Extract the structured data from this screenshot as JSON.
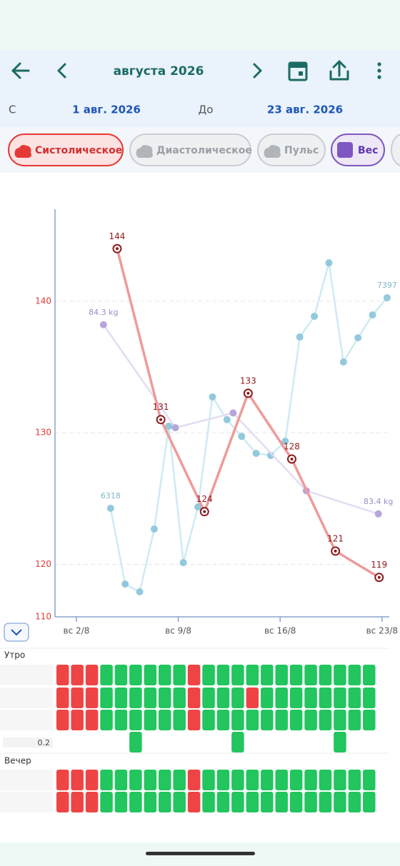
{
  "header": {
    "title": "августа 2026"
  },
  "range": {
    "from_label": "С",
    "from": "1 авг. 2026",
    "to_label": "До",
    "to": "23 авг. 2026"
  },
  "chips": [
    {
      "label": "Систолическое",
      "color": "#e53935",
      "selected": true
    },
    {
      "label": "Диастолическое",
      "color": "#b0b5ba",
      "selected": false
    },
    {
      "label": "Пульс",
      "color": "#b0b5ba",
      "selected": false
    },
    {
      "label": "Вес",
      "color": "#7e57c2",
      "selected": true
    }
  ],
  "chart_data": {
    "type": "line",
    "xlim": [
      0.53,
      23.5
    ],
    "xticks": [
      {
        "value": 2,
        "label": "вс 2/8"
      },
      {
        "value": 9,
        "label": "вс 9/8"
      },
      {
        "value": 16,
        "label": "вс 16/8"
      },
      {
        "value": 23,
        "label": "вс 23/8"
      }
    ],
    "ylim": [
      116,
      147
    ],
    "yticks": [
      120,
      130,
      140
    ],
    "y_min_label": "110",
    "grid": true,
    "y2lim": [
      82.91,
      84.85
    ],
    "y3lim": [
      5762,
      7851
    ],
    "series": [
      {
        "color": "#ef9a9a",
        "marker_color": "#8e1b1b",
        "axis": "y",
        "x": [
          4.8,
          7.8,
          10.8,
          13.8,
          16.8,
          19.8,
          22.8
        ],
        "values": [
          144,
          131,
          124,
          133,
          128,
          121,
          119
        ]
      },
      {
        "color": "#e3dcf3",
        "marker_color": "#b7a6dc",
        "axis": "y2",
        "x": [
          3.86,
          8.8,
          12.77,
          17.8,
          22.75
        ],
        "values": [
          84.3,
          83.81,
          83.88,
          83.51,
          83.4
        ],
        "value_labels": [
          "84.3 kg",
          null,
          null,
          null,
          "83.4 kg"
        ]
      },
      {
        "color": "#cdebf3",
        "marker_color": "#93c9dc",
        "axis": "y3",
        "x": [
          4.35,
          5.35,
          6.35,
          7.35,
          8.35,
          9.35,
          10.35,
          11.35,
          12.35,
          13.35,
          14.35,
          15.35,
          16.35,
          17.35,
          18.35,
          19.35,
          20.35,
          21.35,
          22.35,
          23.35
        ],
        "values": [
          6318,
          5930,
          5890,
          6212,
          6739,
          6040,
          6325,
          6889,
          6772,
          6687,
          6600,
          6589,
          6662,
          7196,
          7302,
          7576,
          7068,
          7192,
          7309,
          7397
        ],
        "value_labels": [
          "6318",
          null,
          null,
          null,
          null,
          null,
          null,
          null,
          null,
          null,
          null,
          null,
          null,
          null,
          null,
          null,
          null,
          null,
          null,
          "7397"
        ]
      }
    ]
  },
  "schedule": {
    "cell_colors": [
      "#22c55e",
      "#ef4444"
    ],
    "sections": [
      {
        "label": "Утро",
        "rows": [
          {
            "cells": [
              1,
              1,
              1,
              0,
              0,
              0,
              0,
              0,
              0,
              1,
              0,
              0,
              0,
              0,
              0,
              0,
              0,
              0,
              0,
              0,
              0,
              0
            ]
          },
          {
            "cells": [
              1,
              1,
              1,
              0,
              0,
              0,
              0,
              0,
              0,
              1,
              0,
              0,
              0,
              1,
              0,
              0,
              0,
              0,
              0,
              0,
              0,
              0
            ]
          },
          {
            "cells": [
              1,
              1,
              1,
              0,
              0,
              0,
              0,
              0,
              0,
              1,
              0,
              0,
              0,
              0,
              0,
              0,
              0,
              0,
              0,
              0,
              0,
              0
            ]
          },
          {
            "label": "0.2",
            "cells": [
              null,
              null,
              null,
              null,
              null,
              0,
              null,
              null,
              null,
              null,
              null,
              null,
              0,
              null,
              null,
              null,
              null,
              null,
              null,
              0,
              null,
              null
            ]
          }
        ]
      },
      {
        "label": "Вечер",
        "rows": [
          {
            "cells": [
              1,
              1,
              1,
              0,
              0,
              0,
              0,
              0,
              0,
              1,
              0,
              0,
              0,
              0,
              0,
              0,
              0,
              0,
              0,
              0,
              0,
              0
            ]
          },
          {
            "cells": [
              1,
              1,
              1,
              0,
              0,
              0,
              0,
              0,
              0,
              1,
              0,
              0,
              0,
              0,
              0,
              0,
              0,
              0,
              0,
              0,
              0,
              0
            ]
          }
        ]
      }
    ]
  }
}
